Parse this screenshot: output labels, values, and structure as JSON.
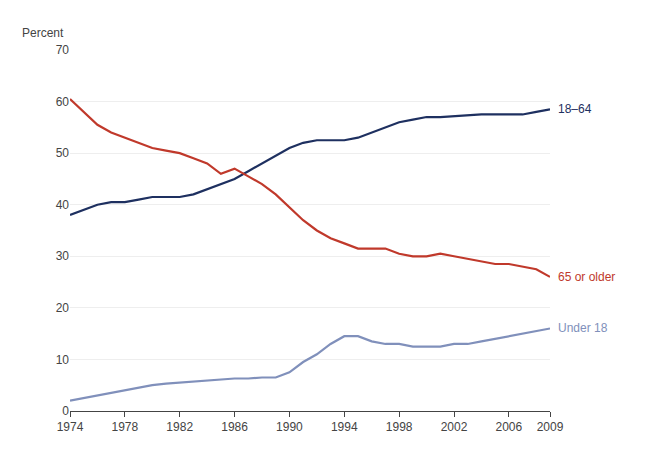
{
  "chart_data": {
    "type": "line",
    "ylabel": "Percent",
    "x": [
      1974,
      1975,
      1976,
      1977,
      1978,
      1979,
      1980,
      1981,
      1982,
      1983,
      1984,
      1985,
      1986,
      1987,
      1988,
      1989,
      1990,
      1991,
      1992,
      1993,
      1994,
      1995,
      1996,
      1997,
      1998,
      1999,
      2000,
      2001,
      2002,
      2003,
      2004,
      2005,
      2006,
      2007,
      2008,
      2009
    ],
    "xlim": [
      1974,
      2009
    ],
    "xticks": [
      1974,
      1978,
      1982,
      1986,
      1990,
      1994,
      1998,
      2002,
      2006,
      2009
    ],
    "ylim": [
      0,
      70
    ],
    "yticks": [
      0,
      10,
      20,
      30,
      40,
      50,
      60,
      70
    ],
    "grid": true,
    "legend": false,
    "series": [
      {
        "name": "18–64",
        "color": "#1e3060",
        "values": [
          38.0,
          39.0,
          40.0,
          40.5,
          40.5,
          41.0,
          41.5,
          41.5,
          41.5,
          42.0,
          43.0,
          44.0,
          45.0,
          46.5,
          48.0,
          49.5,
          51.0,
          52.0,
          52.5,
          52.5,
          52.5,
          53.0,
          54.0,
          55.0,
          56.0,
          56.5,
          57.0,
          57.0,
          57.2,
          57.3,
          57.5,
          57.5,
          57.5,
          57.5,
          58.0,
          58.5
        ]
      },
      {
        "name": "65 or older",
        "color": "#c0392b",
        "values": [
          60.5,
          58.0,
          55.5,
          54.0,
          53.0,
          52.0,
          51.0,
          50.5,
          50.0,
          49.0,
          48.0,
          46.0,
          47.0,
          45.5,
          44.0,
          42.0,
          39.5,
          37.0,
          35.0,
          33.5,
          32.5,
          31.5,
          31.5,
          31.5,
          30.5,
          30.0,
          30.0,
          30.5,
          30.0,
          29.5,
          29.0,
          28.5,
          28.5,
          28.0,
          27.5,
          26.0
        ]
      },
      {
        "name": "Under 18",
        "color": "#8090bb",
        "values": [
          2.0,
          2.5,
          3.0,
          3.5,
          4.0,
          4.5,
          5.0,
          5.3,
          5.5,
          5.7,
          6.0,
          6.2,
          6.3,
          6.3,
          6.5,
          6.5,
          7.5,
          9.5,
          11.0,
          13.0,
          14.5,
          14.5,
          13.5,
          13.0,
          13.0,
          12.5,
          12.5,
          12.5,
          13.0,
          13.0,
          13.5,
          14.0,
          14.5,
          15.0,
          15.5,
          16.0
        ]
      }
    ]
  }
}
